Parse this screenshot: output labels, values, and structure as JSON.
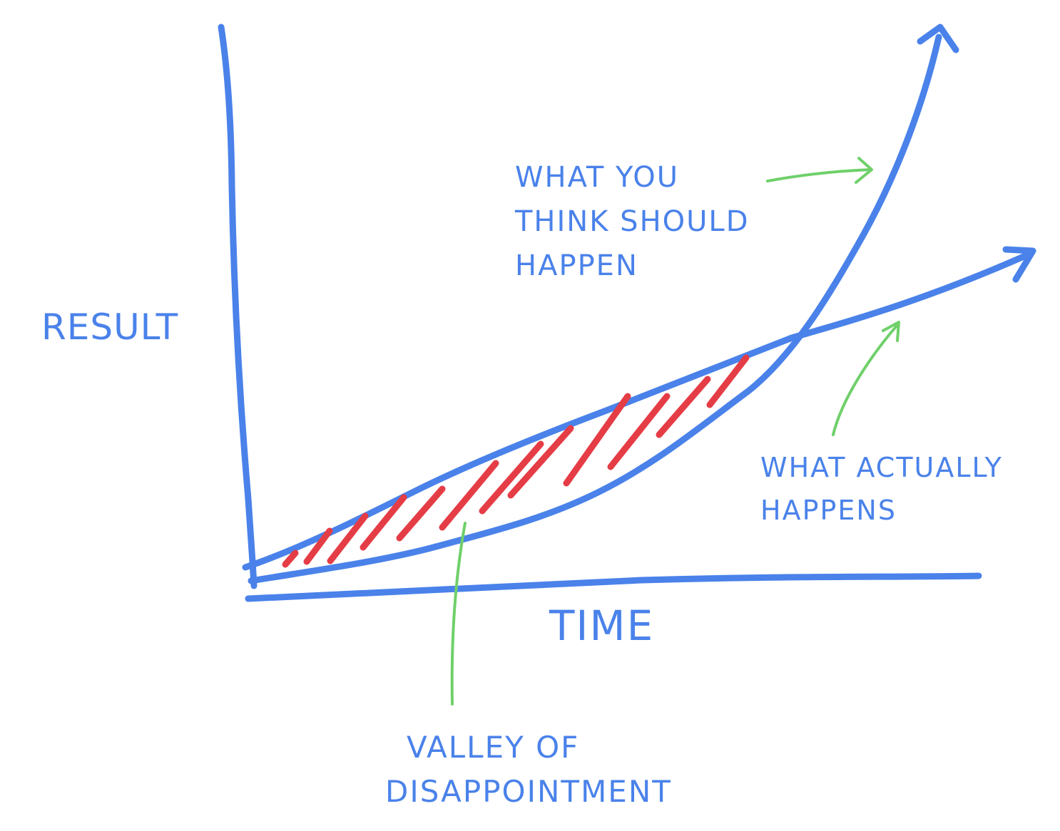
{
  "labels": {
    "y_axis": "RESULT",
    "x_axis": "TIME",
    "expected_curve": "WHAT YOU\nTHINK SHOULD\nHAPPEN",
    "actual_curve": "WHAT ACTUALLY\nHAPPENS",
    "gap_region": "VALLEY OF\nDISAPPOINTMENT"
  },
  "colors": {
    "ink": "#4a82ea",
    "hatch": "#e53d46",
    "pointer": "#6fd06a",
    "background": "#ffffff"
  }
}
